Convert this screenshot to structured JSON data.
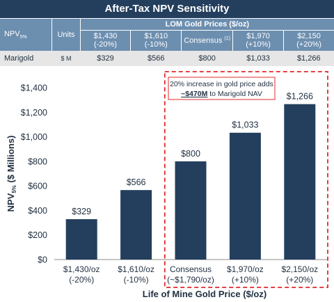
{
  "header": {
    "title": "After-Tax NPV Sensitivity"
  },
  "table": {
    "npv_label": "NPV",
    "npv_sub": "5%",
    "units_header": "Units",
    "group_header": "LOM Gold Prices ($/oz)",
    "columns": [
      {
        "line1": "$1,430",
        "line2": "(-20%)",
        "sup": ""
      },
      {
        "line1": "$1,610",
        "line2": "(-10%)",
        "sup": ""
      },
      {
        "line1": "Consensus",
        "line2": "",
        "sup": "(1)"
      },
      {
        "line1": "$1,970",
        "line2": "(+10%)",
        "sup": ""
      },
      {
        "line1": "$2,150",
        "line2": "(+20%)",
        "sup": ""
      }
    ],
    "row": {
      "name": "Marigold",
      "unit": "$ M",
      "values": [
        "$329",
        "$566",
        "$800",
        "$1,033",
        "$1,266"
      ]
    }
  },
  "chart_data": {
    "type": "bar",
    "categories": [
      [
        "$1,430/oz",
        "(-20%)"
      ],
      [
        "$1,610/oz",
        "(-10%)"
      ],
      [
        "Consensus",
        "(~$1,790/oz)"
      ],
      [
        "$1,970/oz",
        "(+10%)"
      ],
      [
        "$2,150/oz",
        "(+20%)"
      ]
    ],
    "values": [
      329,
      566,
      800,
      1033,
      1266
    ],
    "data_labels": [
      "$329",
      "$566",
      "$800",
      "$1,033",
      "$1,266"
    ],
    "ylim": [
      0,
      1400
    ],
    "yticks": [
      0,
      200,
      400,
      600,
      800,
      1000,
      1200,
      1400
    ],
    "ytick_labels": [
      "$0",
      "$200",
      "$400",
      "$600",
      "$800",
      "$1,000",
      "$1,200",
      "$1,400"
    ],
    "ylabel": {
      "main": "NPV",
      "sub": "5%",
      "rest": " ($ Millions)"
    },
    "xlabel": "Life of Mine Gold Price ($/oz)",
    "bar_color": "#243f5d",
    "highlight": {
      "from_category": 2,
      "to_category": 4,
      "color": "#e0282b",
      "annotation_line1": "20% increase in gold price adds",
      "annotation_bold": "~$470M",
      "annotation_rest": " to Marigold NAV"
    }
  }
}
